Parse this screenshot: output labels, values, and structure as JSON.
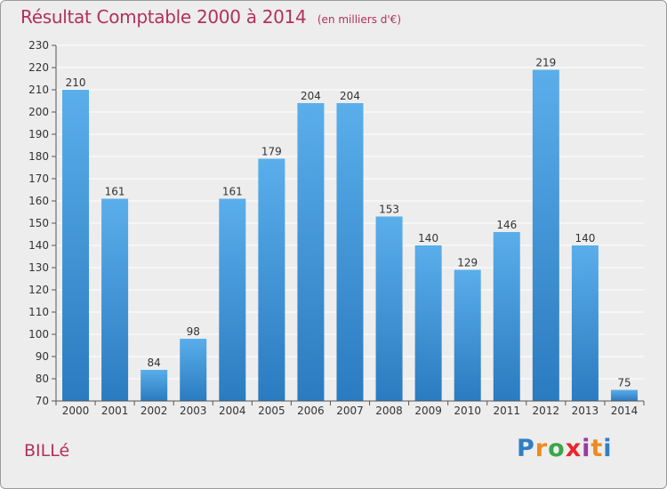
{
  "header": {
    "title": "Résultat Comptable 2000 à 2014",
    "unit": "(en milliers d'€)"
  },
  "footer": {
    "place": "BILLé",
    "logo_letters": [
      "P",
      "r",
      "o",
      "x",
      "i",
      "t",
      "i"
    ],
    "logo_colors": [
      "#2f7fc4",
      "#f08a1c",
      "#3aa64a",
      "#e8262e",
      "#9b3aa0",
      "#f08a1c",
      "#2f7fc4"
    ]
  },
  "chart_data": {
    "type": "bar",
    "title": "Résultat Comptable 2000 à 2014",
    "subtitle": "(en milliers d'€)",
    "categories": [
      "2000",
      "2001",
      "2002",
      "2003",
      "2004",
      "2005",
      "2006",
      "2007",
      "2008",
      "2009",
      "2010",
      "2011",
      "2012",
      "2013",
      "2014"
    ],
    "values": [
      210,
      161,
      84,
      98,
      161,
      179,
      204,
      204,
      153,
      140,
      129,
      146,
      219,
      140,
      75
    ],
    "ylim": [
      70,
      230
    ],
    "yticks": [
      70,
      80,
      90,
      100,
      110,
      120,
      130,
      140,
      150,
      160,
      170,
      180,
      190,
      200,
      210,
      220,
      230
    ],
    "grid": true,
    "colors": {
      "bar_top": "#5aaeea",
      "bar_bottom": "#2a7bc0",
      "grid": "#ffffff",
      "plot_bg": "#ededed"
    }
  }
}
